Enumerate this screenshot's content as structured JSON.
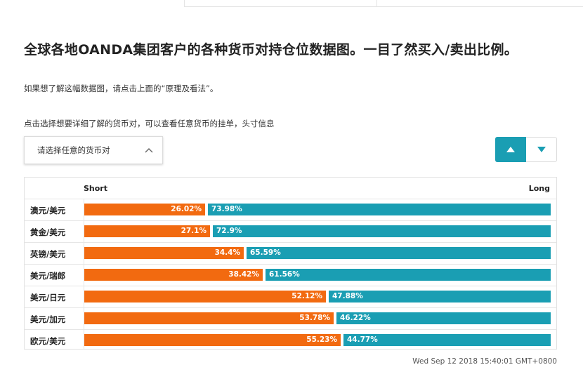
{
  "page": {
    "title": "全球各地OANDA集团客户的各种货币对持仓位数据图。一目了然买入/卖出比例。",
    "hint": "如果想了解这幅数据图，请点击上面的“原理及看法”。",
    "select_hint": "点击选择想要详细了解的货币对，可以查看任意货币的挂单，头寸信息"
  },
  "dropdown": {
    "placeholder": "请选择任意的货币对"
  },
  "sort": {
    "up_icon": "triangle-up-icon",
    "down_icon": "triangle-down-icon"
  },
  "colors": {
    "short": "#f26a10",
    "long": "#1a9eb3"
  },
  "chart_data": {
    "type": "bar",
    "orientation": "horizontal-stacked-100",
    "title": "",
    "series_labels": {
      "short": "Short",
      "long": "Long"
    },
    "categories": [
      "澳元/美元",
      "黄金/美元",
      "英镑/美元",
      "美元/瑞郎",
      "美元/日元",
      "美元/加元",
      "欧元/美元"
    ],
    "series": [
      {
        "name": "Short",
        "values": [
          26.02,
          27.1,
          34.4,
          38.42,
          52.12,
          53.78,
          55.23
        ]
      },
      {
        "name": "Long",
        "values": [
          73.98,
          72.9,
          65.59,
          61.56,
          47.88,
          46.22,
          44.77
        ]
      }
    ],
    "rows": [
      {
        "pair": "澳元/美元",
        "short": 26.02,
        "long": 73.98,
        "short_label": "26.02%",
        "long_label": "73.98%"
      },
      {
        "pair": "黄金/美元",
        "short": 27.1,
        "long": 72.9,
        "short_label": "27.1%",
        "long_label": "72.9%"
      },
      {
        "pair": "英镑/美元",
        "short": 34.4,
        "long": 65.59,
        "short_label": "34.4%",
        "long_label": "65.59%"
      },
      {
        "pair": "美元/瑞郎",
        "short": 38.42,
        "long": 61.56,
        "short_label": "38.42%",
        "long_label": "61.56%"
      },
      {
        "pair": "美元/日元",
        "short": 52.12,
        "long": 47.88,
        "short_label": "52.12%",
        "long_label": "47.88%"
      },
      {
        "pair": "美元/加元",
        "short": 53.78,
        "long": 46.22,
        "short_label": "53.78%",
        "long_label": "46.22%"
      },
      {
        "pair": "欧元/美元",
        "short": 55.23,
        "long": 44.77,
        "short_label": "55.23%",
        "long_label": "44.77%"
      }
    ]
  },
  "footer": {
    "timestamp": "Wed Sep 12 2018 15:40:01 GMT+0800"
  }
}
